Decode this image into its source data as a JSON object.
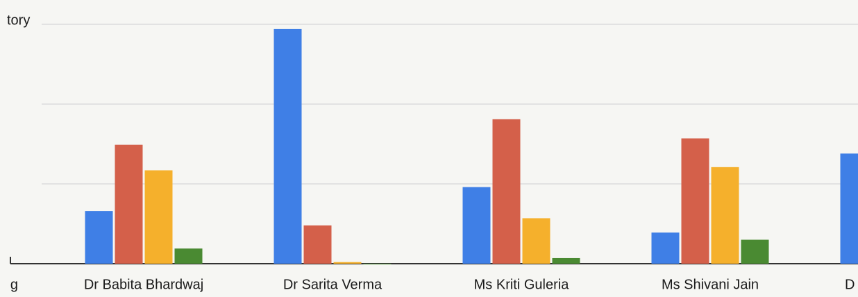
{
  "chart_data": {
    "type": "bar",
    "axis_label": "tory",
    "categories": [
      "g",
      "Dr Babita Bhardwaj",
      "Dr Sarita Verma",
      "Ms Kriti Guleria",
      "Ms Shivani Jain",
      "D"
    ],
    "series": [
      {
        "color": "#3f7fe6",
        "values": [
          null,
          0.66,
          2.94,
          0.96,
          0.39,
          1.38
        ]
      },
      {
        "color": "#d4604a",
        "values": [
          null,
          1.49,
          0.48,
          1.81,
          1.57,
          null
        ]
      },
      {
        "color": "#f5b02c",
        "values": [
          null,
          1.17,
          0.02,
          0.57,
          1.21,
          null
        ]
      },
      {
        "color": "#4a8a32",
        "values": [
          null,
          0.19,
          0,
          0.07,
          0.3,
          null
        ]
      }
    ],
    "ylim": [
      0,
      3
    ],
    "gridlines": [
      1,
      2,
      3
    ],
    "grid": true
  }
}
